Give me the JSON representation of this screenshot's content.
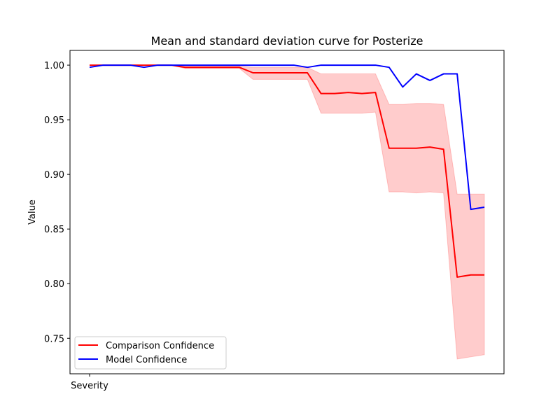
{
  "chart_data": {
    "type": "line",
    "title": "Mean and standard deviation curve for Posterize",
    "xlabel": "",
    "ylabel": "Value",
    "x_tick_labels": [
      "Severity"
    ],
    "y_ticks": [
      "0.75",
      "0.80",
      "0.85",
      "0.90",
      "0.95",
      "1.00"
    ],
    "ylim": [
      0.7175,
      1.0135
    ],
    "grid": false,
    "legend_position": "lower left",
    "x": [
      0,
      1,
      2,
      3,
      4,
      5,
      6,
      7,
      8,
      9,
      10,
      11,
      12,
      13,
      14,
      15,
      16,
      17,
      18,
      19,
      20,
      21,
      22,
      23,
      24,
      25,
      26,
      27,
      28,
      29
    ],
    "series": [
      {
        "name": "Comparison Confidence",
        "color": "#ff0000",
        "values": [
          1.0,
          1.0,
          1.0,
          1.0,
          1.0,
          1.0,
          1.0,
          0.998,
          0.998,
          0.998,
          0.998,
          0.998,
          0.993,
          0.993,
          0.993,
          0.993,
          0.993,
          0.974,
          0.974,
          0.975,
          0.974,
          0.975,
          0.924,
          0.924,
          0.924,
          0.925,
          0.923,
          0.806,
          0.808,
          0.808
        ],
        "band_lower": [
          1.0,
          1.0,
          1.0,
          1.0,
          1.0,
          1.0,
          1.0,
          0.997,
          0.997,
          0.997,
          0.997,
          0.997,
          0.987,
          0.987,
          0.987,
          0.987,
          0.987,
          0.956,
          0.956,
          0.956,
          0.956,
          0.957,
          0.884,
          0.884,
          0.883,
          0.884,
          0.883,
          0.731,
          0.733,
          0.735
        ],
        "band_upper": [
          1.0,
          1.0,
          1.0,
          1.0,
          1.0,
          1.0,
          1.0,
          0.999,
          0.999,
          0.999,
          0.999,
          0.999,
          0.998,
          0.998,
          0.998,
          0.998,
          0.998,
          0.992,
          0.992,
          0.992,
          0.992,
          0.992,
          0.964,
          0.964,
          0.965,
          0.965,
          0.964,
          0.882,
          0.882,
          0.882
        ],
        "band_color": "#ff0000",
        "band_opacity": 0.2
      },
      {
        "name": "Model Confidence",
        "color": "#0000ff",
        "values": [
          0.998,
          1.0,
          1.0,
          1.0,
          0.998,
          1.0,
          1.0,
          1.0,
          1.0,
          1.0,
          1.0,
          1.0,
          1.0,
          1.0,
          1.0,
          1.0,
          0.998,
          1.0,
          1.0,
          1.0,
          1.0,
          1.0,
          0.998,
          0.98,
          0.992,
          0.986,
          0.992,
          0.992,
          0.868,
          0.87
        ]
      }
    ]
  }
}
